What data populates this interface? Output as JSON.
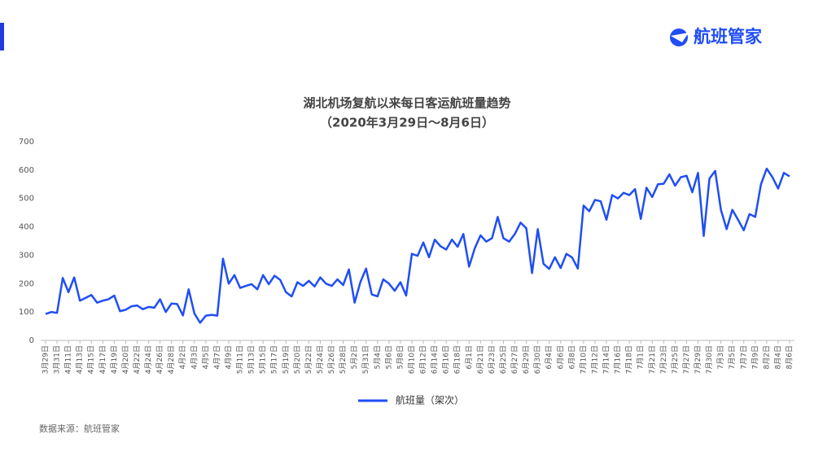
{
  "chart_data": {
    "type": "line",
    "title": "湖北机场复航以来每日客运航班量趋势",
    "subtitle": "（2020年3月29日～8月6日）",
    "brand": "航班管家",
    "source": "数据来源：航班管家",
    "categories": [
      "3月29日",
      null,
      "3月31日",
      null,
      "4月11日",
      null,
      "4月13日",
      null,
      "4月15日",
      null,
      "4月17日",
      null,
      "4月19日",
      null,
      "4月20日",
      null,
      "4月22日",
      null,
      "4月24日",
      null,
      "4月26日",
      null,
      "4月28日",
      null,
      "4月2日",
      null,
      "4月3日",
      null,
      "4月5日",
      null,
      "4月7日",
      null,
      "4月9日",
      null,
      "5月11日",
      null,
      "5月13日",
      null,
      "5月15日",
      null,
      "5月17日",
      null,
      "5月19日",
      null,
      "5月20日",
      null,
      "5月22日",
      null,
      "5月24日",
      null,
      "5月26日",
      null,
      "5月28日",
      null,
      "5月2日",
      null,
      "5月31日",
      null,
      "5月4日",
      null,
      "5月6日",
      null,
      "5月8日",
      null,
      "6月10日",
      null,
      "6月12日",
      null,
      "6月14日",
      null,
      "6月16日",
      null,
      "6月18日",
      null,
      "6月1日",
      null,
      "6月21日",
      null,
      "6月23日",
      null,
      "6月25日",
      null,
      "6月27日",
      null,
      "6月29日",
      null,
      "6月30日",
      null,
      "6月4日",
      null,
      "6月6日",
      null,
      "6月8日",
      null,
      "7月10日",
      null,
      "7月12日",
      null,
      "7月14日",
      null,
      "7月16日",
      null,
      "7月18日",
      null,
      "7月1日",
      null,
      "7月21日",
      null,
      "7月23日",
      null,
      "7月25日",
      null,
      "7月27日",
      null,
      "7月29日",
      null,
      "7月30日",
      null,
      "7月3日",
      null,
      "7月5日",
      null,
      "7月7日",
      null,
      "7月9日",
      null,
      "8月2日",
      null,
      "8月4日",
      null,
      "8月6日"
    ],
    "series": [
      {
        "name": "航班量（架次）",
        "color": "#1f4ef5",
        "values": [
          93,
          100,
          97,
          220,
          170,
          222,
          140,
          150,
          160,
          133,
          140,
          145,
          158,
          103,
          108,
          120,
          123,
          110,
          118,
          115,
          145,
          100,
          130,
          128,
          88,
          180,
          95,
          62,
          87,
          90,
          87,
          288,
          200,
          230,
          185,
          192,
          198,
          180,
          230,
          198,
          228,
          213,
          170,
          155,
          205,
          192,
          210,
          190,
          222,
          200,
          192,
          215,
          195,
          250,
          133,
          205,
          253,
          162,
          155,
          215,
          200,
          175,
          205,
          158,
          305,
          298,
          345,
          293,
          355,
          332,
          320,
          355,
          330,
          375,
          260,
          325,
          370,
          348,
          360,
          435,
          360,
          348,
          375,
          415,
          395,
          237,
          392,
          270,
          252,
          293,
          255,
          305,
          292,
          253,
          475,
          455,
          495,
          490,
          425,
          512,
          500,
          520,
          512,
          533,
          428,
          538,
          505,
          550,
          552,
          585,
          545,
          575,
          580,
          522,
          590,
          368,
          570,
          597,
          460,
          392,
          460,
          425,
          388,
          445,
          435,
          550,
          605,
          575,
          535,
          590,
          578
        ]
      }
    ],
    "ylim": [
      0,
      700
    ],
    "yticks": [
      0,
      100,
      200,
      300,
      400,
      500,
      600,
      700
    ],
    "grid": false
  }
}
